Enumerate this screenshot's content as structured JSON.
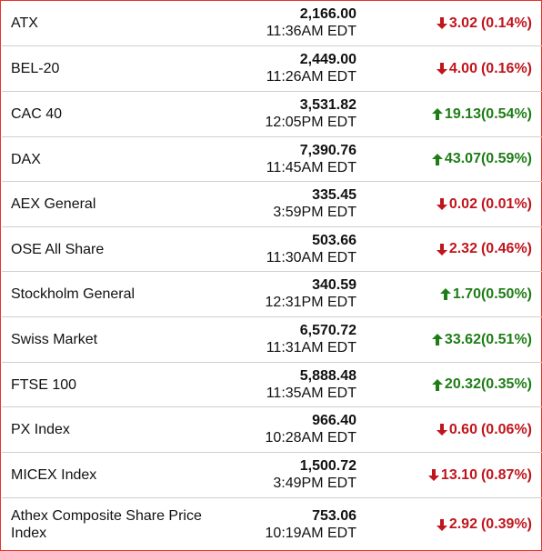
{
  "colors": {
    "down": "#c0151c",
    "up": "#1e7d16",
    "border": "#e8332a",
    "divider": "#cfcfcf"
  },
  "indices": [
    {
      "name": "ATX",
      "price": "2,166.00",
      "time": "11:36AM EDT",
      "change": "3.02",
      "percent": "(0.14%)",
      "direction": "down"
    },
    {
      "name": "BEL-20",
      "price": "2,449.00",
      "time": "11:26AM EDT",
      "change": "4.00",
      "percent": "(0.16%)",
      "direction": "down"
    },
    {
      "name": "CAC 40",
      "price": "3,531.82",
      "time": "12:05PM EDT",
      "change": "19.13",
      "percent": "(0.54%)",
      "direction": "up"
    },
    {
      "name": "DAX",
      "price": "7,390.76",
      "time": "11:45AM EDT",
      "change": "43.07",
      "percent": "(0.59%)",
      "direction": "up"
    },
    {
      "name": "AEX General",
      "price": "335.45",
      "time": "3:59PM EDT",
      "change": "0.02",
      "percent": "(0.01%)",
      "direction": "down"
    },
    {
      "name": "OSE All Share",
      "price": "503.66",
      "time": "11:30AM EDT",
      "change": "2.32",
      "percent": "(0.46%)",
      "direction": "down"
    },
    {
      "name": "Stockholm General",
      "price": "340.59",
      "time": "12:31PM EDT",
      "change": "1.70",
      "percent": "(0.50%)",
      "direction": "up"
    },
    {
      "name": "Swiss Market",
      "price": "6,570.72",
      "time": "11:31AM EDT",
      "change": "33.62",
      "percent": "(0.51%)",
      "direction": "up"
    },
    {
      "name": "FTSE 100",
      "price": "5,888.48",
      "time": "11:35AM EDT",
      "change": "20.32",
      "percent": "(0.35%)",
      "direction": "up"
    },
    {
      "name": "PX Index",
      "price": "966.40",
      "time": "10:28AM EDT",
      "change": "0.60",
      "percent": "(0.06%)",
      "direction": "down"
    },
    {
      "name": "MICEX Index",
      "price": "1,500.72",
      "time": "3:49PM EDT",
      "change": "13.10",
      "percent": "(0.87%)",
      "direction": "down"
    },
    {
      "name": "Athex Composite Share Price Index",
      "price": "753.06",
      "time": "10:19AM EDT",
      "change": "2.92",
      "percent": "(0.39%)",
      "direction": "down"
    }
  ]
}
